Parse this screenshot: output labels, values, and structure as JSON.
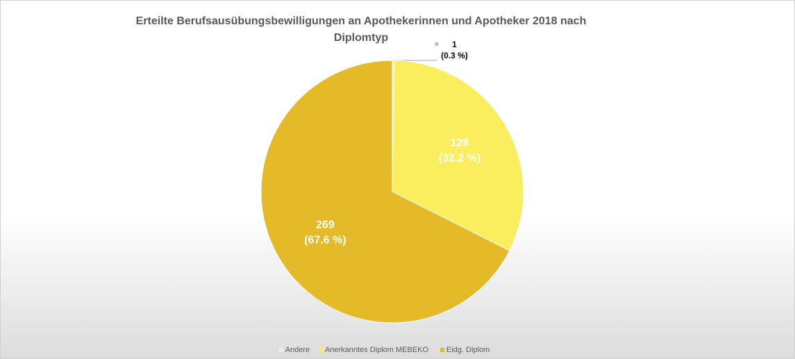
{
  "chart_data": {
    "type": "pie",
    "title": "Erteilte Berufsausübungsbewilligungen an Apothekerinnen und Apotheker 2018 nach Diplomtyp",
    "categories": [
      "Andere",
      "Anerkanntes Diplom MEBEKO",
      "Eidg. Diplom"
    ],
    "values": [
      1,
      128,
      269
    ],
    "value_labels": [
      [
        "1",
        "(0.3 %)"
      ],
      [
        "128",
        "(32.2 %)"
      ],
      [
        "269",
        "(67.6 %)"
      ]
    ],
    "colors": [
      "#ececec",
      "#faee5f",
      "#e5ba28"
    ],
    "legend": "bottom"
  }
}
